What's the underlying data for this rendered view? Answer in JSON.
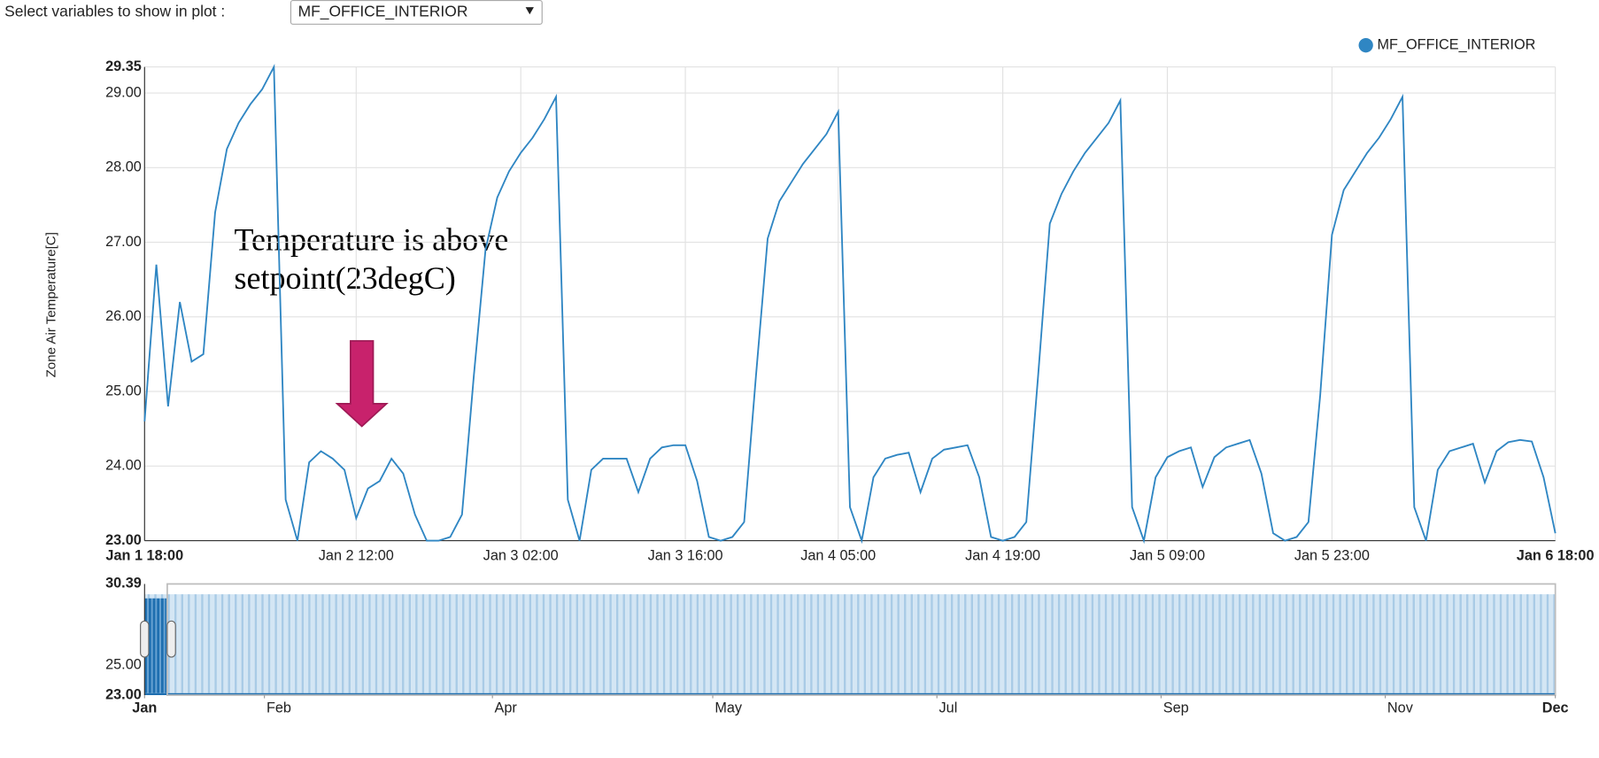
{
  "controls": {
    "label": "Select variables to show in plot :",
    "selected": "MF_OFFICE_INTERIOR"
  },
  "chart_data": [
    {
      "type": "line",
      "y_label": "Zone Air Temperature[C]",
      "annotation": [
        "Temperature is above",
        "setpoint(23degC)"
      ],
      "x": [
        "Jan 1 18:00",
        "Jan 1 19:00",
        "Jan 1 20:00",
        "Jan 1 21:00",
        "Jan 1 22:00",
        "Jan 1 23:00",
        "Jan 2 00:00",
        "Jan 2 01:00",
        "Jan 2 02:00",
        "Jan 2 03:00",
        "Jan 2 04:00",
        "Jan 2 05:00",
        "Jan 2 06:00",
        "Jan 2 07:00",
        "Jan 2 08:00",
        "Jan 2 09:00",
        "Jan 2 10:00",
        "Jan 2 11:00",
        "Jan 2 12:00",
        "Jan 2 13:00",
        "Jan 2 14:00",
        "Jan 2 15:00",
        "Jan 2 16:00",
        "Jan 2 17:00",
        "Jan 2 18:00",
        "Jan 2 19:00",
        "Jan 2 20:00",
        "Jan 2 21:00",
        "Jan 2 22:00",
        "Jan 2 23:00",
        "Jan 3 00:00",
        "Jan 3 01:00",
        "Jan 3 02:00",
        "Jan 3 03:00",
        "Jan 3 04:00",
        "Jan 3 05:00",
        "Jan 3 06:00",
        "Jan 3 07:00",
        "Jan 3 08:00",
        "Jan 3 09:00",
        "Jan 3 10:00",
        "Jan 3 11:00",
        "Jan 3 12:00",
        "Jan 3 13:00",
        "Jan 3 14:00",
        "Jan 3 15:00",
        "Jan 3 16:00",
        "Jan 3 17:00",
        "Jan 3 18:00",
        "Jan 3 19:00",
        "Jan 3 20:00",
        "Jan 3 21:00",
        "Jan 3 22:00",
        "Jan 3 23:00",
        "Jan 4 00:00",
        "Jan 4 01:00",
        "Jan 4 02:00",
        "Jan 4 03:00",
        "Jan 4 04:00",
        "Jan 4 05:00",
        "Jan 4 06:00",
        "Jan 4 07:00",
        "Jan 4 08:00",
        "Jan 4 09:00",
        "Jan 4 10:00",
        "Jan 4 11:00",
        "Jan 4 12:00",
        "Jan 4 13:00",
        "Jan 4 14:00",
        "Jan 4 15:00",
        "Jan 4 16:00",
        "Jan 4 17:00",
        "Jan 4 18:00",
        "Jan 4 19:00",
        "Jan 4 20:00",
        "Jan 4 21:00",
        "Jan 4 22:00",
        "Jan 4 23:00",
        "Jan 5 00:00",
        "Jan 5 01:00",
        "Jan 5 02:00",
        "Jan 5 03:00",
        "Jan 5 04:00",
        "Jan 5 05:00",
        "Jan 5 06:00",
        "Jan 5 07:00",
        "Jan 5 08:00",
        "Jan 5 09:00",
        "Jan 5 10:00",
        "Jan 5 11:00",
        "Jan 5 12:00",
        "Jan 5 13:00",
        "Jan 5 14:00",
        "Jan 5 15:00",
        "Jan 5 16:00",
        "Jan 5 17:00",
        "Jan 5 18:00",
        "Jan 5 19:00",
        "Jan 5 20:00",
        "Jan 5 21:00",
        "Jan 5 22:00",
        "Jan 5 23:00",
        "Jan 6 00:00",
        "Jan 6 01:00",
        "Jan 6 02:00",
        "Jan 6 03:00",
        "Jan 6 04:00",
        "Jan 6 05:00",
        "Jan 6 06:00",
        "Jan 6 07:00",
        "Jan 6 08:00",
        "Jan 6 09:00",
        "Jan 6 10:00",
        "Jan 6 11:00",
        "Jan 6 12:00",
        "Jan 6 13:00",
        "Jan 6 14:00",
        "Jan 6 15:00",
        "Jan 6 16:00",
        "Jan 6 17:00",
        "Jan 6 18:00"
      ],
      "series": [
        {
          "name": "MF_OFFICE_INTERIOR",
          "color": "#2f86c3",
          "values": [
            24.6,
            26.7,
            24.8,
            26.2,
            25.4,
            25.5,
            27.4,
            28.25,
            28.6,
            28.85,
            29.05,
            29.35,
            23.55,
            23.0,
            24.05,
            24.2,
            24.1,
            23.95,
            23.3,
            23.7,
            23.8,
            24.1,
            23.9,
            23.35,
            23.0,
            23.0,
            23.05,
            23.35,
            25.2,
            26.9,
            27.6,
            27.95,
            28.2,
            28.4,
            28.65,
            28.95,
            23.55,
            23.0,
            23.95,
            24.1,
            24.1,
            24.1,
            23.65,
            24.1,
            24.25,
            24.28,
            24.28,
            23.8,
            23.05,
            23.0,
            23.05,
            23.25,
            25.2,
            27.05,
            27.55,
            27.8,
            28.05,
            28.25,
            28.45,
            28.75,
            23.45,
            23.0,
            23.85,
            24.1,
            24.15,
            24.18,
            23.65,
            24.1,
            24.22,
            24.25,
            24.28,
            23.85,
            23.05,
            23.0,
            23.05,
            23.25,
            25.2,
            27.25,
            27.65,
            27.95,
            28.2,
            28.4,
            28.6,
            28.9,
            23.45,
            23.0,
            23.85,
            24.12,
            24.2,
            24.25,
            23.72,
            24.12,
            24.25,
            24.3,
            24.35,
            23.9,
            23.1,
            23.0,
            23.05,
            23.25,
            24.95,
            27.1,
            27.7,
            27.95,
            28.2,
            28.4,
            28.65,
            28.95,
            23.45,
            23.0,
            23.95,
            24.2,
            24.25,
            24.3,
            23.78,
            24.2,
            24.32,
            24.35,
            24.33,
            23.85,
            23.1
          ]
        }
      ],
      "xlim": [
        "Jan 1 18:00",
        "Jan 6 18:00"
      ],
      "xticks": [
        "Jan 1 18:00",
        "Jan 2 12:00",
        "Jan 3 02:00",
        "Jan 3 16:00",
        "Jan 4 05:00",
        "Jan 4 19:00",
        "Jan 5 09:00",
        "Jan 5 23:00",
        "Jan 6 18:00"
      ],
      "ylim": [
        23,
        29.35
      ],
      "yticks": [
        {
          "value": 23,
          "label": "23.00"
        },
        {
          "value": 24,
          "label": "24.00"
        },
        {
          "value": 25,
          "label": "25.00"
        },
        {
          "value": 26,
          "label": "26.00"
        },
        {
          "value": 27,
          "label": "27.00"
        },
        {
          "value": 28,
          "label": "28.00"
        },
        {
          "value": 29,
          "label": "29.00"
        },
        {
          "value": 29.35,
          "label": "29.35"
        }
      ],
      "grid": true,
      "legend": "top-right"
    },
    {
      "type": "range-selector",
      "xlim": [
        0,
        365
      ],
      "xticks": [
        {
          "value": 0,
          "label": "Jan"
        },
        {
          "value": 31,
          "label": "Feb"
        },
        {
          "value": 90,
          "label": "Apr"
        },
        {
          "value": 147,
          "label": "May"
        },
        {
          "value": 205,
          "label": "Jul"
        },
        {
          "value": 263,
          "label": "Sep"
        },
        {
          "value": 321,
          "label": "Nov"
        },
        {
          "value": 365,
          "label": "Dec"
        }
      ],
      "ylim": [
        23,
        30.39
      ],
      "yticks": [
        {
          "value": 23,
          "label": "23.00"
        },
        {
          "value": 25,
          "label": "25.00"
        },
        {
          "value": 30.39,
          "label": "30.39"
        }
      ]
    }
  ]
}
